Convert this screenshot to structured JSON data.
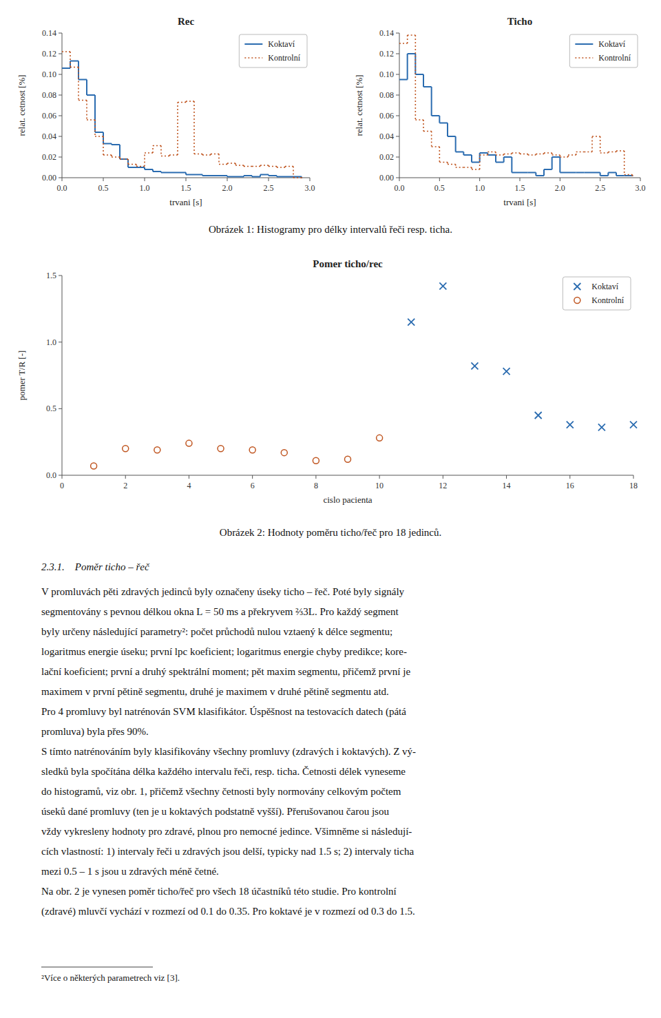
{
  "chart_data": [
    {
      "type": "step",
      "title": "Rec",
      "x_label": "trvani [s]",
      "y_label": "relat. cetnost [%]",
      "xlim": [
        0,
        3
      ],
      "ylim": [
        0,
        0.14
      ],
      "xticks": [
        {
          "value": 0,
          "label": "0.0"
        },
        0.5,
        {
          "value": 1,
          "label": "1.0"
        },
        1.5,
        {
          "value": 2,
          "label": "2.0"
        },
        2.5,
        {
          "value": 3,
          "label": "3.0"
        }
      ],
      "yticks": [
        {
          "value": 0,
          "label": "0.00"
        },
        0.02,
        0.04,
        0.06,
        0.08,
        {
          "value": 0.1,
          "label": "0.10"
        },
        0.12,
        0.14
      ],
      "legend": "upper right",
      "series": [
        {
          "name": "Koktaví",
          "line_style": "solid",
          "x": [
            0.0,
            0.1,
            0.2,
            0.3,
            0.4,
            0.5,
            0.6,
            0.7,
            0.8,
            0.9,
            1.0,
            1.1,
            1.2,
            1.3,
            1.4,
            1.5,
            1.6,
            1.7,
            1.8,
            1.9,
            2.0,
            2.1,
            2.2,
            2.3,
            2.4,
            2.5,
            2.6,
            2.7,
            2.8,
            2.9
          ],
          "values": [
            0.106,
            0.113,
            0.095,
            0.08,
            0.044,
            0.033,
            0.032,
            0.018,
            0.01,
            0.01,
            0.008,
            0.006,
            0.005,
            0.005,
            0.005,
            0.003,
            0.003,
            0.002,
            0.002,
            0.002,
            0.001,
            0.001,
            0.002,
            0.001,
            0.003,
            0.002,
            0.001,
            0.001,
            0.001,
            0.0
          ]
        },
        {
          "name": "Kontrolní",
          "line_style": "dotted",
          "x": [
            0.0,
            0.1,
            0.2,
            0.3,
            0.4,
            0.5,
            0.6,
            0.7,
            0.8,
            0.9,
            1.0,
            1.1,
            1.2,
            1.3,
            1.4,
            1.5,
            1.6,
            1.7,
            1.8,
            1.9,
            2.0,
            2.1,
            2.2,
            2.3,
            2.4,
            2.5,
            2.6,
            2.7,
            2.8,
            2.9
          ],
          "values": [
            0.122,
            0.107,
            0.075,
            0.056,
            0.04,
            0.022,
            0.02,
            0.018,
            0.013,
            0.011,
            0.024,
            0.031,
            0.021,
            0.022,
            0.073,
            0.074,
            0.023,
            0.022,
            0.023,
            0.013,
            0.014,
            0.012,
            0.011,
            0.011,
            0.012,
            0.011,
            0.01,
            0.011,
            0.0,
            0.0
          ]
        }
      ]
    },
    {
      "type": "step",
      "title": "Ticho",
      "x_label": "trvani [s]",
      "y_label": "relat. cetnost [%]",
      "xlim": [
        0,
        3
      ],
      "ylim": [
        0,
        0.14
      ],
      "xticks": [
        {
          "value": 0,
          "label": "0.0"
        },
        0.5,
        {
          "value": 1,
          "label": "1.0"
        },
        1.5,
        {
          "value": 2,
          "label": "2.0"
        },
        2.5,
        {
          "value": 3,
          "label": "3.0"
        }
      ],
      "yticks": [
        {
          "value": 0,
          "label": "0.00"
        },
        0.02,
        0.04,
        0.06,
        0.08,
        {
          "value": 0.1,
          "label": "0.10"
        },
        0.12,
        0.14
      ],
      "legend": "upper right",
      "series": [
        {
          "name": "Koktaví",
          "line_style": "solid",
          "x": [
            0.0,
            0.1,
            0.2,
            0.3,
            0.4,
            0.5,
            0.6,
            0.7,
            0.8,
            0.9,
            1.0,
            1.1,
            1.2,
            1.3,
            1.4,
            1.5,
            1.6,
            1.7,
            1.8,
            1.9,
            2.0,
            2.1,
            2.2,
            2.3,
            2.4,
            2.5,
            2.6,
            2.7,
            2.8,
            2.9
          ],
          "values": [
            0.095,
            0.12,
            0.1,
            0.088,
            0.06,
            0.053,
            0.04,
            0.025,
            0.022,
            0.015,
            0.024,
            0.022,
            0.015,
            0.02,
            0.005,
            0.005,
            0.005,
            0.002,
            0.008,
            0.02,
            0.005,
            0.005,
            0.005,
            0.005,
            0.005,
            0.002,
            0.005,
            0.002,
            0.002,
            0.002
          ]
        },
        {
          "name": "Kontrolní",
          "line_style": "dotted",
          "x": [
            0.0,
            0.1,
            0.2,
            0.3,
            0.4,
            0.5,
            0.6,
            0.7,
            0.8,
            0.9,
            1.0,
            1.1,
            1.2,
            1.3,
            1.4,
            1.5,
            1.6,
            1.7,
            1.8,
            1.9,
            2.0,
            2.1,
            2.2,
            2.3,
            2.4,
            2.5,
            2.6,
            2.7,
            2.8,
            2.9
          ],
          "values": [
            0.13,
            0.138,
            0.056,
            0.045,
            0.03,
            0.015,
            0.013,
            0.01,
            0.01,
            0.008,
            0.022,
            0.025,
            0.022,
            0.023,
            0.024,
            0.023,
            0.022,
            0.023,
            0.024,
            0.022,
            0.02,
            0.022,
            0.025,
            0.025,
            0.04,
            0.024,
            0.025,
            0.026,
            0.003,
            0.002
          ]
        }
      ]
    },
    {
      "type": "scatter",
      "title": "Pomer ticho/rec",
      "x_label": "cislo pacienta",
      "y_label": "pomer T/R [-]",
      "xlim": [
        0,
        18
      ],
      "ylim": [
        0,
        1.5
      ],
      "xticks": [
        0,
        2,
        4,
        6,
        8,
        10,
        12,
        14,
        16,
        18
      ],
      "yticks": [
        {
          "value": 0,
          "label": "0.0"
        },
        0.5,
        {
          "value": 1,
          "label": "1.0"
        },
        1.5
      ],
      "legend": "upper right",
      "series": [
        {
          "name": "Koktaví",
          "marker": "x",
          "x": [
            11,
            12,
            13,
            14,
            15,
            16,
            17,
            18
          ],
          "values": [
            1.15,
            1.42,
            0.82,
            0.78,
            0.45,
            0.38,
            0.36,
            0.38
          ]
        },
        {
          "name": "Kontrolní",
          "marker": "circle",
          "x": [
            1,
            2,
            3,
            4,
            5,
            6,
            7,
            8,
            9,
            10
          ],
          "values": [
            0.07,
            0.2,
            0.19,
            0.24,
            0.2,
            0.19,
            0.17,
            0.11,
            0.12,
            0.28
          ]
        }
      ]
    }
  ],
  "text": {
    "captions": [
      "Obrázek 1: Histogramy pro délky intervalů řeči resp. ticha.",
      "Obrázek 2: Hodnoty poměru ticho/řeč pro 18 jedinců."
    ],
    "heading": "2.3.1.    Poměr ticho – řeč",
    "body_lines": [
      "V promluvách pěti zdravých jedinců byly označeny úseky ticho – řeč. Poté byly signály",
      "segmentovány s pevnou délkou okna L = 50 ms a překryvem ⅔3L. Pro každý segment",
      "byly určeny následující parametry²: počet průchodů nulou vztaený k délce segmentu;",
      "logaritmus energie úseku; první lpc koeficient; logaritmus energie chyby predikce; kore-",
      "lační koeficient; první a druhý spektrální moment; pět maxim segmentu, přičemž první je",
      "maximem v první pětině segmentu, druhé je maximem v druhé pětině segmentu atd.",
      "Pro 4 promluvy byl natrénován SVM klasifikátor. Úspěšnost na testovacích datech (pátá",
      "promluva) byla přes 90%.",
      "S tímto natrénováním byly klasifikovány všechny promluvy (zdravých i koktavých). Z vý-",
      "sledků byla spočítána délka každého intervalu řeči, resp. ticha. Četnosti délek vyneseme",
      "do histogramů, viz obr. 1, přičemž všechny četnosti byly normovány celkovým počtem",
      "úseků dané promluvy (ten je u koktavých podstatně vyšší). Přerušovanou čarou jsou",
      "vždy vykresleny hodnoty pro zdravé, plnou pro nemocné jedince. Všimněme si následují-",
      "cích vlastností: 1) intervaly řeči u zdravých jsou delší, typicky nad 1.5 s; 2) intervaly ticha",
      "mezi 0.5 – 1 s jsou u zdravých méně četné.",
      "Na obr. 2 je vynesen poměr ticho/řeč pro všech 18 účastníků této studie. Pro kontrolní",
      "(zdravé) mluvčí vychází v rozmezí od 0.1 do 0.35. Pro koktavé je v rozmezí od 0.3 do 1.5."
    ],
    "footnote": "²Více o některých parametrech viz [3]."
  }
}
